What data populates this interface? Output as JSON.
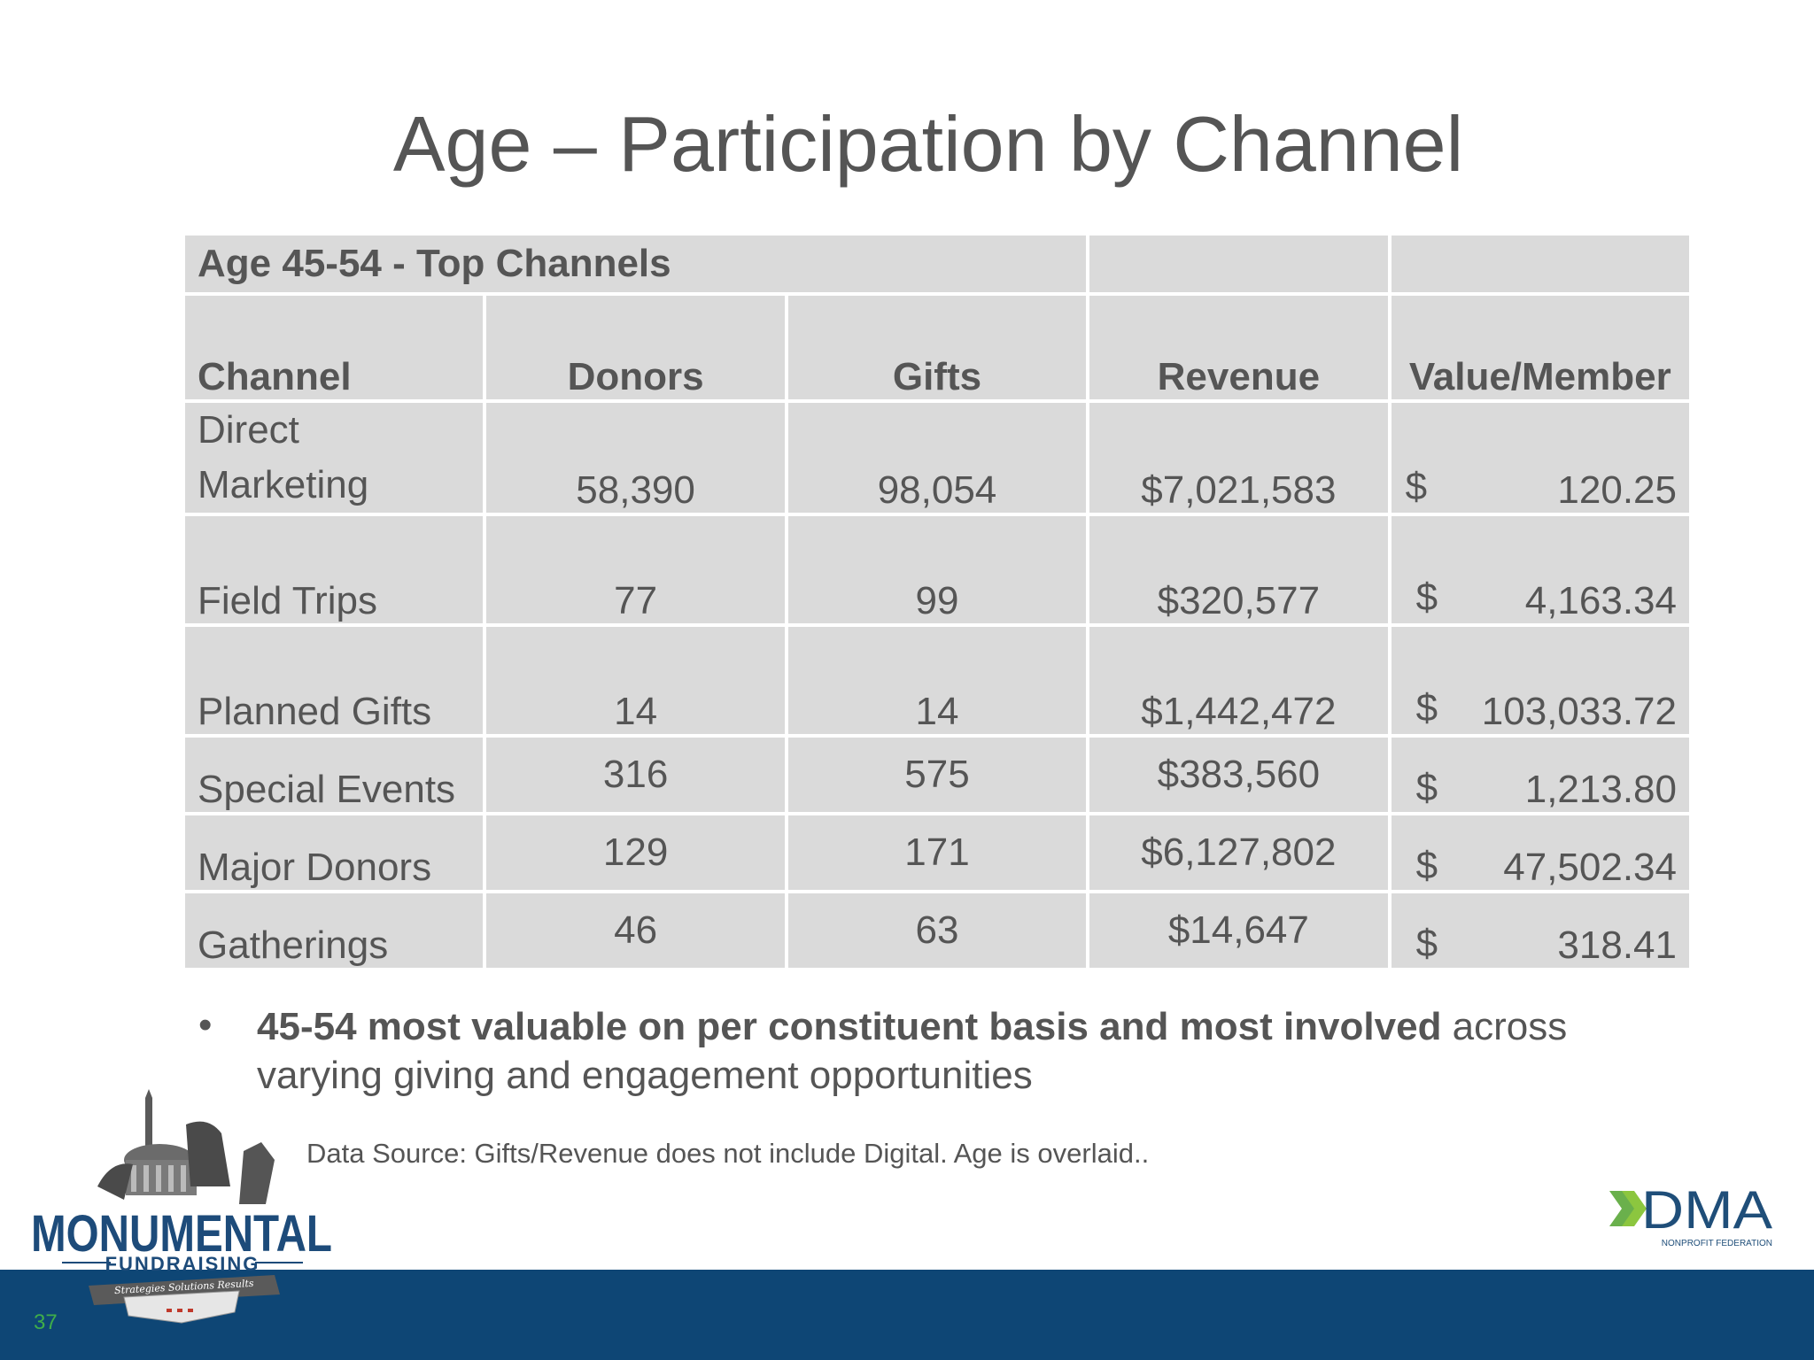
{
  "slide": {
    "title": "Age – Participation by Channel",
    "page_number": "37"
  },
  "table": {
    "section_title": "Age 45-54  - Top Channels",
    "headers": [
      "Channel",
      "Donors",
      "Gifts",
      "Revenue",
      "Value/Member"
    ],
    "rows": [
      {
        "channel_line1": "Direct",
        "channel_line2": "Marketing",
        "donors": "58,390",
        "gifts": "98,054",
        "revenue": "$7,021,583",
        "currency": "$",
        "value": "120.25"
      },
      {
        "channel": "Field Trips",
        "donors": "77",
        "gifts": "99",
        "revenue": "$320,577",
        "currency": "$",
        "value": "4,163.34"
      },
      {
        "channel": "Planned Gifts",
        "donors": "14",
        "gifts": "14",
        "revenue": "$1,442,472",
        "currency": "$",
        "value": "103,033.72"
      },
      {
        "channel": "Special Events",
        "donors": "316",
        "gifts": "575",
        "revenue": "$383,560",
        "currency": "$",
        "value": "1,213.80"
      },
      {
        "channel": "Major Donors",
        "donors": "129",
        "gifts": "171",
        "revenue": "$6,127,802",
        "currency": "$",
        "value": "47,502.34"
      },
      {
        "channel": "Gatherings",
        "donors": "46",
        "gifts": "63",
        "revenue": "$14,647",
        "currency": "$",
        "value": "318.41"
      }
    ]
  },
  "bullet": {
    "marker": "•",
    "bold_text": "45-54 most valuable on per constituent basis and most involved",
    "rest_text": " across varying giving and engagement opportunities"
  },
  "source_note": "Data Source: Gifts/Revenue does not include Digital.  Age is overlaid..",
  "logos": {
    "left": {
      "line1": "MONUMENTAL",
      "line2": "FUNDRAISING",
      "ribbon": "Strategies  Solutions  Results"
    },
    "right": {
      "mark": "DMA",
      "subtitle": "NONPROFIT FEDERATION"
    }
  },
  "colors": {
    "table_fill": "#dadada",
    "text": "#555555",
    "footer_bar": "#0e4675",
    "page_number": "#3fae49",
    "dma_green": "#6ab04c",
    "dma_navy": "#1f4e79"
  }
}
